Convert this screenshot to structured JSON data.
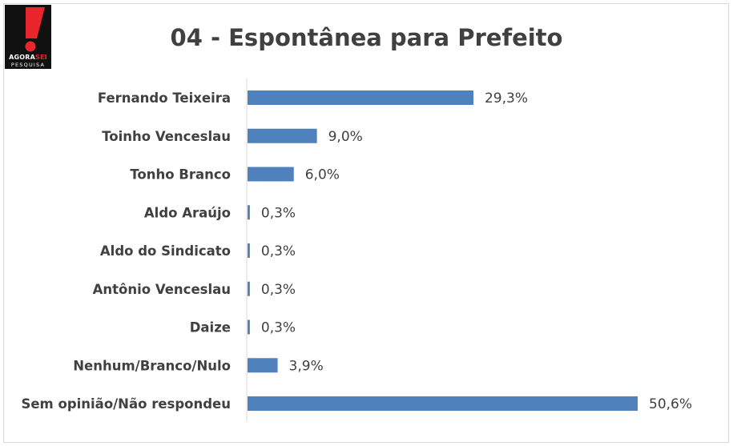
{
  "logo": {
    "line1_main": "AGORA",
    "line1_accent": "SEI",
    "line2": "PESQUISA"
  },
  "chart_data": {
    "type": "bar",
    "orientation": "horizontal",
    "title": "04 - Espontânea para Prefeito",
    "categories": [
      "Fernando Teixeira",
      "Toinho Venceslau",
      "Tonho Branco",
      "Aldo Araújo",
      "Aldo do Sindicato",
      "Antônio Venceslau",
      "Daize",
      "Nenhum/Branco/Nulo",
      "Sem opinião/Não respondeu"
    ],
    "values": [
      29.3,
      9.0,
      6.0,
      0.3,
      0.3,
      0.3,
      0.3,
      3.9,
      50.6
    ],
    "value_labels": [
      "29,3%",
      "9,0%",
      "6,0%",
      "0,3%",
      "0,3%",
      "0,3%",
      "0,3%",
      "3,9%",
      "50,6%"
    ],
    "bar_color": "#4f81bd",
    "xlim": [
      0,
      52
    ],
    "grid": false,
    "legend": "none"
  }
}
